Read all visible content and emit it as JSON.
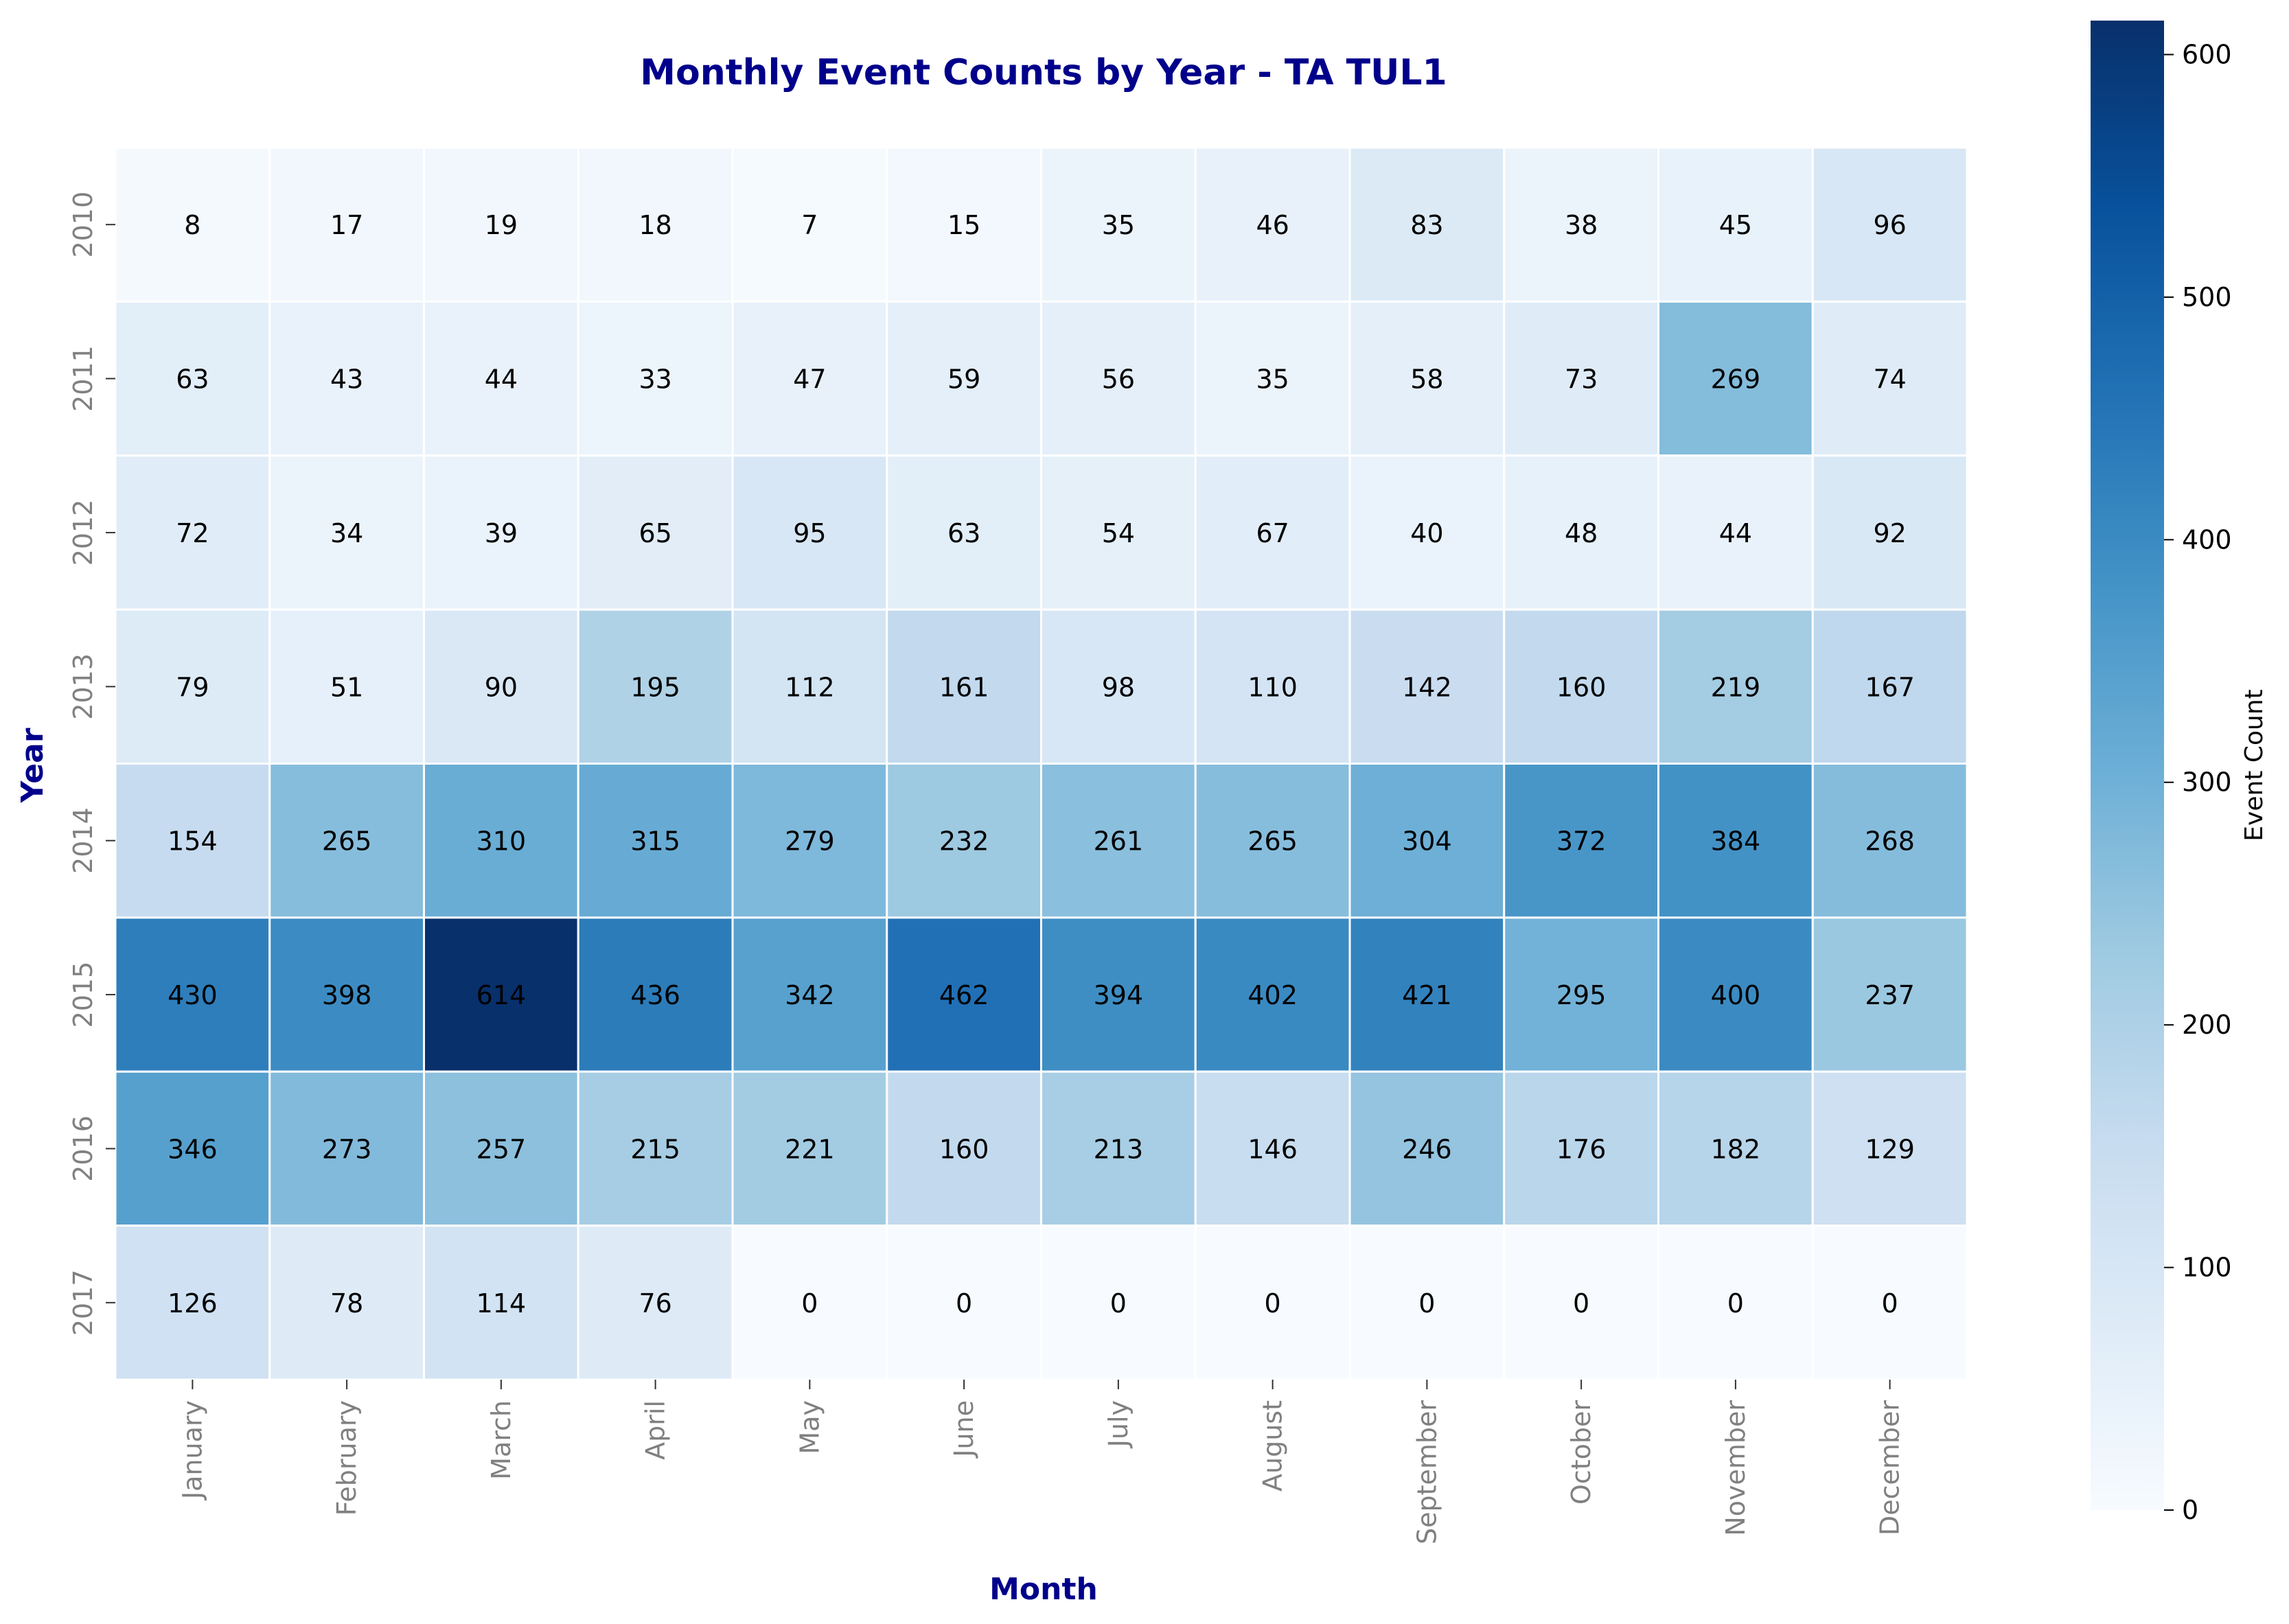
{
  "chart_data": {
    "type": "heatmap",
    "title": "Monthly Event Counts by Year - TA TUL1",
    "xlabel": "Month",
    "ylabel": "Year",
    "colorbar_label": "Event Count",
    "x_categories": [
      "January",
      "February",
      "March",
      "April",
      "May",
      "June",
      "July",
      "August",
      "September",
      "October",
      "November",
      "December"
    ],
    "y_categories": [
      "2010",
      "2011",
      "2012",
      "2013",
      "2014",
      "2015",
      "2016",
      "2017"
    ],
    "values": [
      [
        8,
        17,
        19,
        18,
        7,
        15,
        35,
        46,
        83,
        38,
        45,
        96
      ],
      [
        63,
        43,
        44,
        33,
        47,
        59,
        56,
        35,
        58,
        73,
        269,
        74
      ],
      [
        72,
        34,
        39,
        65,
        95,
        63,
        54,
        67,
        40,
        48,
        44,
        92
      ],
      [
        79,
        51,
        90,
        195,
        112,
        161,
        98,
        110,
        142,
        160,
        219,
        167
      ],
      [
        154,
        265,
        310,
        315,
        279,
        232,
        261,
        265,
        304,
        372,
        384,
        268
      ],
      [
        430,
        398,
        614,
        436,
        342,
        462,
        394,
        402,
        421,
        295,
        400,
        237
      ],
      [
        346,
        273,
        257,
        215,
        221,
        160,
        213,
        146,
        246,
        176,
        182,
        129
      ],
      [
        126,
        78,
        114,
        76,
        0,
        0,
        0,
        0,
        0,
        0,
        0,
        0
      ]
    ],
    "value_range": [
      0,
      614
    ],
    "colorbar_ticks": [
      0,
      100,
      200,
      300,
      400,
      500,
      600
    ],
    "colormap": "Blues",
    "colors": {
      "title": "#00008b",
      "axis_label": "#00008b",
      "tick_label": "#808080",
      "cell_border": "#ffffff"
    }
  }
}
